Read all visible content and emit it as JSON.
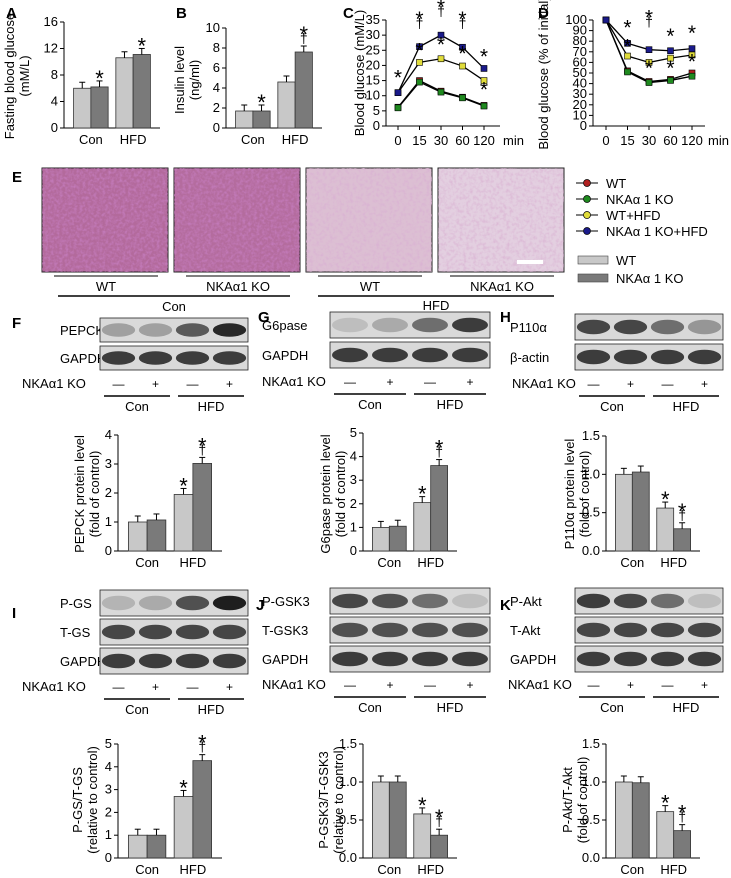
{
  "colors": {
    "wt": "#c8c8c8",
    "ko": "#7a7a7a",
    "series": [
      "#b02020",
      "#1f8a1f",
      "#e0dc3a",
      "#1a1a8a"
    ],
    "histo_lean": "#b7649b",
    "histo_hfd": "#dcc6d8"
  },
  "panel_letters": {
    "A": "A",
    "B": "B",
    "C": "C",
    "D": "D",
    "E": "E",
    "F": "F",
    "G": "G",
    "H": "H",
    "I": "I",
    "J": "J",
    "K": "K"
  },
  "common": {
    "con": "Con",
    "hfd": "HFD",
    "ko_label": "NKAα1 KO",
    "minus": "—",
    "plus": "+",
    "star": "*",
    "dagger": "†",
    "min": "min"
  },
  "legend": {
    "lines": [
      "WT",
      "NKAα 1 KO",
      "WT+HFD",
      "NKAα 1 KO+HFD"
    ],
    "bars": [
      "WT",
      "NKAα 1 KO"
    ]
  },
  "histology": {
    "labels": [
      "WT",
      "NKAα1 KO",
      "WT",
      "NKAα1 KO"
    ],
    "groups": [
      "Con",
      "HFD"
    ]
  },
  "blots": {
    "F": {
      "bands": [
        "PEPCK",
        "GAPDH"
      ]
    },
    "G": {
      "bands": [
        "G6pase",
        "GAPDH"
      ]
    },
    "H": {
      "bands": [
        "P110α",
        "β-actin"
      ]
    },
    "I": {
      "bands": [
        "P-GS",
        "T-GS",
        "GAPDH"
      ]
    },
    "J": {
      "bands": [
        "P-GSK3",
        "T-GSK3",
        "GAPDH"
      ]
    },
    "K": {
      "bands": [
        "P-Akt",
        "T-Akt",
        "GAPDH"
      ]
    }
  },
  "chart_data": [
    {
      "panel": "A",
      "type": "bar",
      "ylabel": "Fasting blood glucose (mM/L)",
      "ylim": [
        0,
        16
      ],
      "yticks": [
        0,
        4,
        8,
        12,
        16
      ],
      "categories": [
        "Con",
        "HFD"
      ],
      "series": [
        {
          "name": "WT",
          "values": [
            6.0,
            10.6
          ]
        },
        {
          "name": "NKAα 1 KO",
          "values": [
            6.2,
            11.1
          ]
        }
      ],
      "annotations": [
        [
          "",
          "*"
        ],
        [
          "",
          "*"
        ]
      ]
    },
    {
      "panel": "B",
      "type": "bar",
      "ylabel": "Insulin level (ng/ml)",
      "ylim": [
        0,
        10
      ],
      "yticks": [
        0,
        2,
        4,
        6,
        8,
        10
      ],
      "categories": [
        "Con",
        "HFD"
      ],
      "series": [
        {
          "name": "WT",
          "values": [
            1.7,
            4.6
          ]
        },
        {
          "name": "NKAα 1 KO",
          "values": [
            1.7,
            7.6
          ]
        }
      ],
      "annotations": [
        [
          "",
          "*"
        ],
        [
          "",
          "*†"
        ]
      ]
    },
    {
      "panel": "C",
      "type": "line",
      "ylabel": "Blood glucose (mM/L)",
      "ylim": [
        0,
        35
      ],
      "yticks": [
        0,
        5,
        10,
        15,
        20,
        25,
        30,
        35
      ],
      "x": [
        "0",
        "15",
        "30",
        "60",
        "120"
      ],
      "series": [
        {
          "name": "WT",
          "values": [
            6.2,
            15,
            11.5,
            9.5,
            6.8
          ]
        },
        {
          "name": "NKAα 1 KO",
          "values": [
            6.0,
            14.5,
            11.2,
            9.3,
            6.6
          ]
        },
        {
          "name": "WT+HFD",
          "values": [
            11,
            21,
            22.2,
            19.8,
            15
          ]
        },
        {
          "name": "NKAα 1 KO+HFD",
          "values": [
            11,
            26.2,
            30,
            26,
            19
          ]
        }
      ]
    },
    {
      "panel": "D",
      "type": "line",
      "ylabel": "Blood glucose (% of initial)",
      "ylim": [
        0,
        100
      ],
      "yticks": [
        0,
        10,
        20,
        30,
        40,
        50,
        60,
        70,
        80,
        90,
        100
      ],
      "x": [
        "0",
        "15",
        "30",
        "60",
        "120"
      ],
      "series": [
        {
          "name": "WT",
          "values": [
            100,
            52,
            42,
            44,
            50
          ]
        },
        {
          "name": "NKAα 1 KO",
          "values": [
            100,
            51,
            41,
            43,
            47
          ]
        },
        {
          "name": "WT+HFD",
          "values": [
            100,
            66,
            60,
            64,
            67
          ]
        },
        {
          "name": "NKAα 1 KO+HFD",
          "values": [
            100,
            78,
            72,
            71,
            73
          ]
        }
      ]
    },
    {
      "panel": "F",
      "type": "bar",
      "ylabel": "PEPCK protein level (fold of control)",
      "ylim": [
        0,
        4
      ],
      "yticks": [
        0,
        1,
        2,
        3,
        4
      ],
      "categories": [
        "Con",
        "HFD"
      ],
      "series": [
        {
          "name": "WT",
          "values": [
            1.0,
            1.95
          ]
        },
        {
          "name": "NKAα 1 KO",
          "values": [
            1.07,
            3.02
          ]
        }
      ],
      "annotations": [
        [
          "",
          ""
        ],
        [
          "*",
          "*†"
        ]
      ]
    },
    {
      "panel": "G",
      "type": "bar",
      "ylabel": "G6pase protein level (fold of control)",
      "ylim": [
        0,
        5
      ],
      "yticks": [
        0,
        1,
        2,
        3,
        4,
        5
      ],
      "categories": [
        "Con",
        "HFD"
      ],
      "series": [
        {
          "name": "WT",
          "values": [
            1.0,
            2.05
          ]
        },
        {
          "name": "NKAα 1 KO",
          "values": [
            1.05,
            3.62
          ]
        }
      ],
      "annotations": [
        [
          "",
          ""
        ],
        [
          "*",
          "*†"
        ]
      ]
    },
    {
      "panel": "H",
      "type": "bar",
      "ylabel": "P110α protein level (fold of control)",
      "ylim": [
        0,
        1.5
      ],
      "yticks": [
        "0.0",
        "0.5",
        "1.0",
        "1.5"
      ],
      "categories": [
        "Con",
        "HFD"
      ],
      "series": [
        {
          "name": "WT",
          "values": [
            1.0,
            0.56
          ]
        },
        {
          "name": "NKAα 1 KO",
          "values": [
            1.03,
            0.29
          ]
        }
      ],
      "annotations": [
        [
          "",
          ""
        ],
        [
          "*",
          "*†"
        ]
      ]
    },
    {
      "panel": "I",
      "type": "bar",
      "ylabel": "P-GS/T-GS (relative to control)",
      "ylim": [
        0,
        5
      ],
      "yticks": [
        0,
        1,
        2,
        3,
        4,
        5
      ],
      "categories": [
        "Con",
        "HFD"
      ],
      "series": [
        {
          "name": "WT",
          "values": [
            1.0,
            2.7
          ]
        },
        {
          "name": "NKAα 1 KO",
          "values": [
            1.0,
            4.27
          ]
        }
      ],
      "annotations": [
        [
          "",
          ""
        ],
        [
          "*",
          "*†"
        ]
      ]
    },
    {
      "panel": "J",
      "type": "bar",
      "ylabel": "P-GSK3/T-GSK3 (relative to control)",
      "ylim": [
        0,
        1.5
      ],
      "yticks": [
        "0.0",
        "0.5",
        "1.0",
        "1.5"
      ],
      "categories": [
        "Con",
        "HFD"
      ],
      "series": [
        {
          "name": "WT",
          "values": [
            1.0,
            0.58
          ]
        },
        {
          "name": "NKAα 1 KO",
          "values": [
            1.0,
            0.3
          ]
        }
      ],
      "annotations": [
        [
          "",
          ""
        ],
        [
          "*",
          "*†"
        ]
      ]
    },
    {
      "panel": "K",
      "type": "bar",
      "ylabel": "P-Akt/T-Akt (fold of control)",
      "ylim": [
        0,
        1.5
      ],
      "yticks": [
        "0.0",
        "0.5",
        "1.0",
        "1.5"
      ],
      "categories": [
        "Con",
        "HFD"
      ],
      "series": [
        {
          "name": "WT",
          "values": [
            1.0,
            0.61
          ]
        },
        {
          "name": "NKAα 1 KO",
          "values": [
            0.99,
            0.36
          ]
        }
      ],
      "annotations": [
        [
          "",
          ""
        ],
        [
          "*",
          "*†"
        ]
      ]
    }
  ]
}
